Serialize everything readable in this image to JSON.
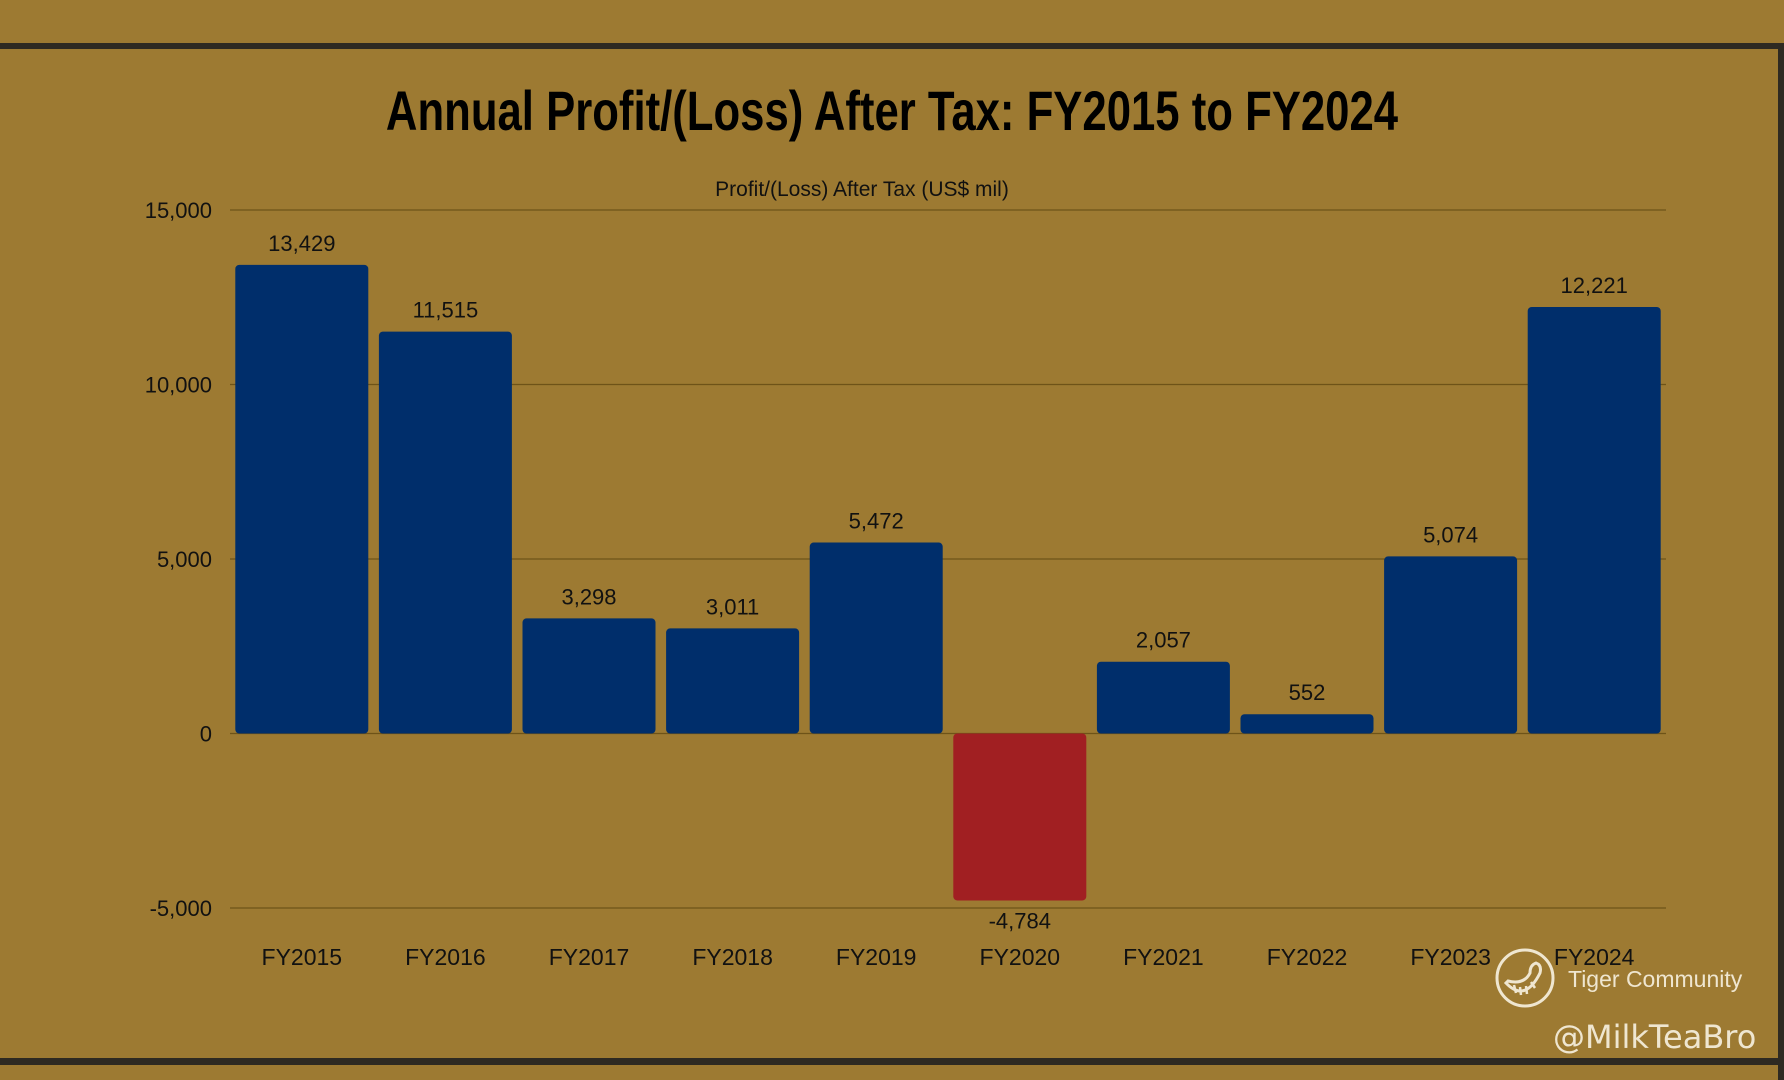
{
  "chart_data": {
    "type": "bar",
    "title": "Annual Profit/(Loss) After Tax: FY2015 to FY2024",
    "subtitle": "Profit/(Loss) After Tax (US$ mil)",
    "xlabel": "",
    "ylabel": "Profit/(Loss) After Tax (US$ mil)",
    "categories": [
      "FY2015",
      "FY2016",
      "FY2017",
      "FY2018",
      "FY2019",
      "FY2020",
      "FY2021",
      "FY2022",
      "FY2023",
      "FY2024"
    ],
    "values": [
      13429,
      11515,
      3298,
      3011,
      5472,
      -4784,
      2057,
      552,
      5074,
      12221
    ],
    "data_labels": [
      "13,429",
      "11,515",
      "3,298",
      "3,011",
      "5,472",
      "-4,784",
      "2,057",
      "552",
      "5,074",
      "12,221"
    ],
    "ylim": [
      -5000,
      15000
    ],
    "yticks": [
      -5000,
      0,
      5000,
      10000,
      15000
    ],
    "ytick_labels": [
      "-5,000",
      "0",
      "5,000",
      "10,000",
      "15,000"
    ],
    "grid": true,
    "legend": "none",
    "colors": {
      "positive": "#002e6b",
      "negative": "#a11f22",
      "background": "#9d7a32",
      "grid": "#6e5318"
    }
  },
  "watermark": {
    "brand": "Tiger Community",
    "user": "@MilkTeaBro"
  }
}
